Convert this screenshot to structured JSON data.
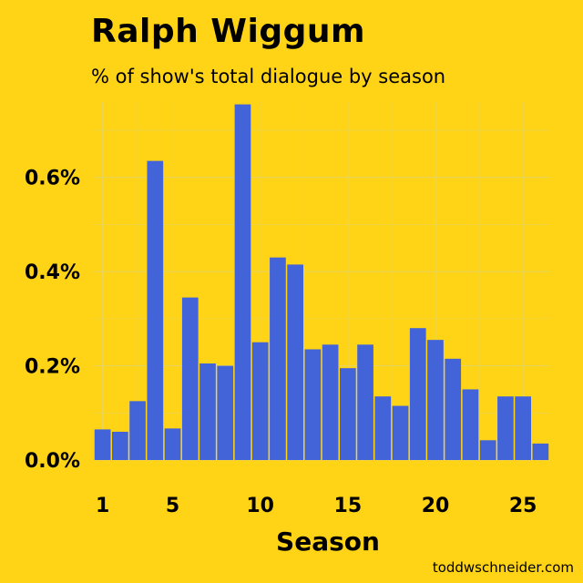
{
  "title": "Ralph Wiggum",
  "subtitle": "% of show's total dialogue by season",
  "credit": "toddwschneider.com",
  "colors": {
    "background": "#FFD416",
    "bar": "#4363D8",
    "grid": "#E8D35C"
  },
  "chart_data": {
    "type": "bar",
    "title": "Ralph Wiggum",
    "subtitle": "% of show's total dialogue by season",
    "xlabel": "Season",
    "ylabel": "",
    "x": [
      1,
      2,
      3,
      4,
      5,
      6,
      7,
      8,
      9,
      10,
      11,
      12,
      13,
      14,
      15,
      16,
      17,
      18,
      19,
      20,
      21,
      22,
      23,
      24,
      25,
      26
    ],
    "values": [
      0.065,
      0.06,
      0.125,
      0.635,
      0.067,
      0.345,
      0.205,
      0.2,
      0.755,
      0.25,
      0.43,
      0.415,
      0.235,
      0.245,
      0.195,
      0.245,
      0.135,
      0.115,
      0.28,
      0.255,
      0.215,
      0.15,
      0.042,
      0.135,
      0.135,
      0.035
    ],
    "xticks": [
      1,
      5,
      10,
      15,
      20,
      25
    ],
    "xtick_labels": [
      "1",
      "5",
      "10",
      "15",
      "20",
      "25"
    ],
    "yticks": [
      0,
      0.2,
      0.4,
      0.6
    ],
    "ytick_labels": [
      "0.0%",
      "0.2%",
      "0.4%",
      "0.6%"
    ],
    "xlim": [
      0.5,
      26.5
    ],
    "ylim": [
      0,
      0.76
    ],
    "grid": true,
    "legend": "none"
  }
}
